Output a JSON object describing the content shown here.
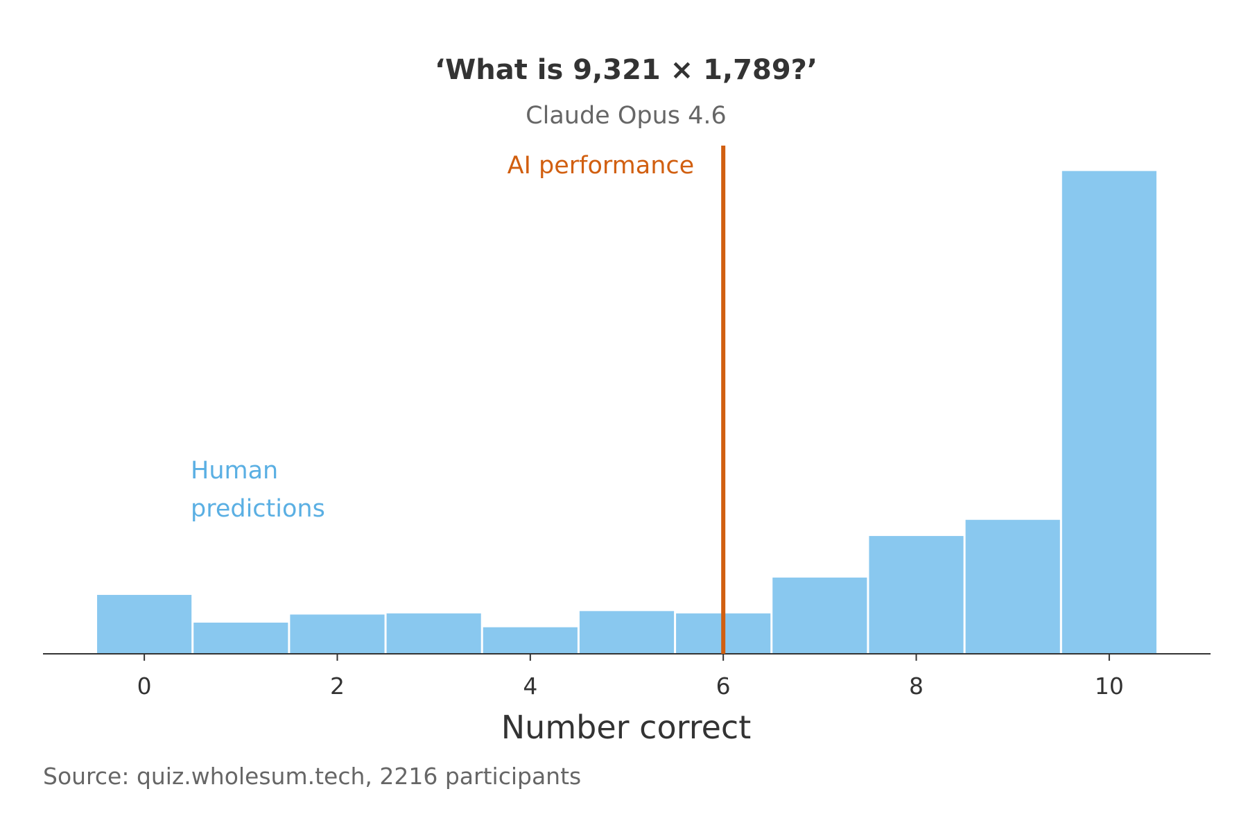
{
  "chart_data": {
    "type": "bar",
    "title": "‘What is 9,321 × 1,789?’",
    "subtitle": "Claude Opus 4.6",
    "xlabel": "Number correct",
    "ylabel": "",
    "categories": [
      0,
      1,
      2,
      3,
      4,
      5,
      6,
      7,
      8,
      9,
      10
    ],
    "values": [
      51,
      27,
      34,
      35,
      23,
      37,
      35,
      66,
      102,
      116,
      418
    ],
    "xlim": [
      -1.05,
      11.05
    ],
    "ylim": [
      0,
      440
    ],
    "xticks": [
      0,
      2,
      4,
      6,
      8,
      10
    ],
    "grid": false,
    "legend": "none",
    "annotations": {
      "ai_line": {
        "x": 6,
        "label": "AI performance"
      },
      "human_label": {
        "lines": [
          "Human",
          "predictions"
        ]
      }
    },
    "source": "Source: quiz.wholesum.tech, 2216 participants",
    "colors": {
      "bars": "#89c8ef",
      "ai_line": "#d15f10",
      "human_text": "#5aafe3",
      "axis": "#333333"
    }
  }
}
